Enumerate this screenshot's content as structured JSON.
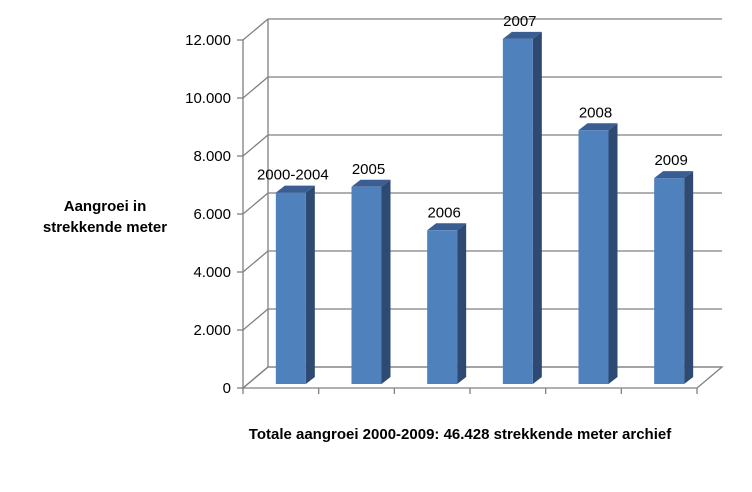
{
  "chart_data": {
    "type": "bar",
    "categories": [
      "2000-2004",
      "2005",
      "2006",
      "2007",
      "2008",
      "2009"
    ],
    "values": [
      6600,
      6800,
      5300,
      11900,
      8750,
      7100
    ],
    "data_labels": [
      "2000-2004",
      "2005",
      "2006",
      "2007",
      "2008",
      "2009"
    ],
    "title": "",
    "xlabel": "Totale aangroei 2000-2009: 46.428 strekkende meter archief",
    "ylabel": "Aangroei in strekkende meter",
    "ylim": [
      0,
      12000
    ],
    "yticks": [
      0,
      2000,
      4000,
      6000,
      8000,
      10000,
      12000
    ],
    "ytick_labels": [
      "0",
      "2.000",
      "4.000",
      "6.000",
      "8.000",
      "10.000",
      "12.000"
    ],
    "grid": true,
    "style": "3d",
    "colors": {
      "bar_front": "#4F81BD",
      "bar_side": "#2E4A72",
      "bar_top": "#3A5E91",
      "grid": "#808080"
    }
  }
}
